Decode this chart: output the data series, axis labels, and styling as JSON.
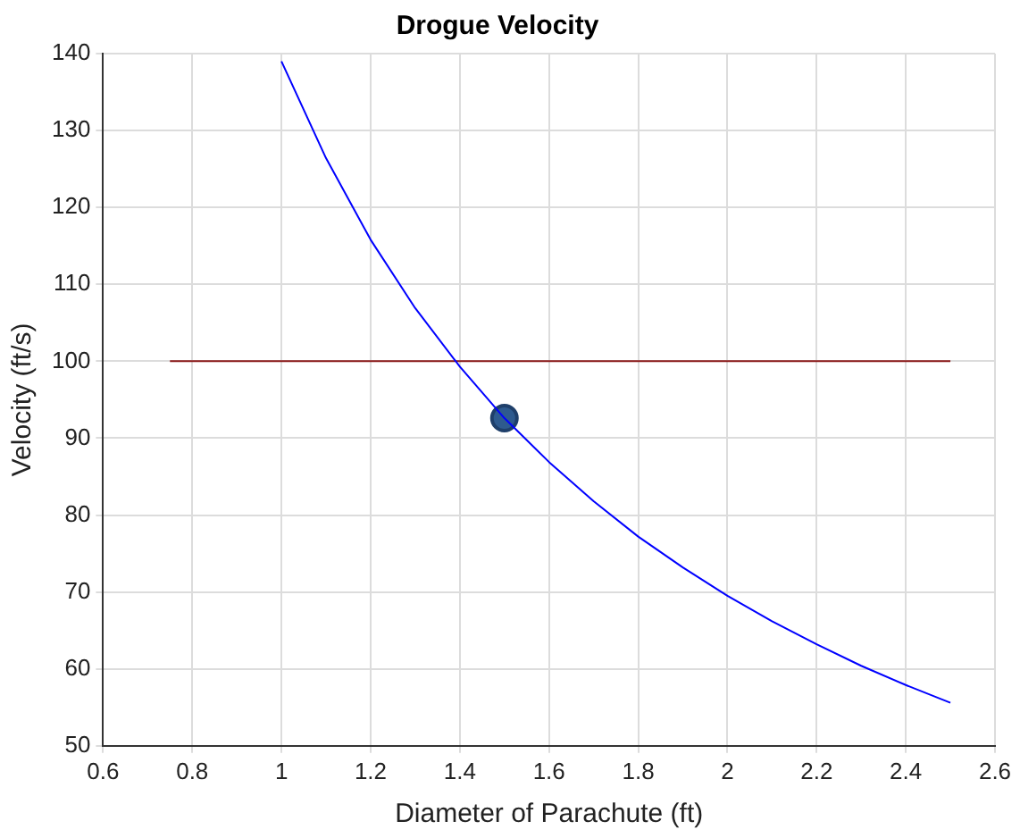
{
  "chart_data": {
    "type": "line",
    "title": "Drogue Velocity",
    "xlabel": "Diameter of Parachute (ft)",
    "ylabel": "Velocity (ft/s)",
    "series": [
      {
        "color": "#0000ff",
        "x": [
          1.0,
          1.1,
          1.2,
          1.3,
          1.4,
          1.5,
          1.6,
          1.7,
          1.8,
          1.9,
          2.0,
          2.1,
          2.2,
          2.3,
          2.4,
          2.5
        ],
        "values": [
          139,
          126.4,
          115.8,
          106.9,
          99.3,
          92.6,
          86.9,
          81.8,
          77.2,
          73.2,
          69.5,
          66.2,
          63.2,
          60.4,
          57.9,
          55.6
        ]
      },
      {
        "color": "#8b1a1a",
        "x": [
          0.75,
          2.5
        ],
        "values": [
          100,
          100
        ]
      },
      {
        "type": "scatter",
        "color": "#2e5a8e",
        "marker": "circle",
        "x": [
          1.5
        ],
        "values": [
          92.6
        ]
      }
    ],
    "xlim": [
      0.6,
      2.6
    ],
    "xticks": [
      0.6,
      0.8,
      1,
      1.2,
      1.4,
      1.6,
      1.8,
      2,
      2.2,
      2.4,
      2.6
    ],
    "ylim": [
      50,
      140
    ],
    "yticks": [
      50,
      60,
      70,
      80,
      90,
      100,
      110,
      120,
      130,
      140
    ],
    "grid": true,
    "legend": false
  }
}
